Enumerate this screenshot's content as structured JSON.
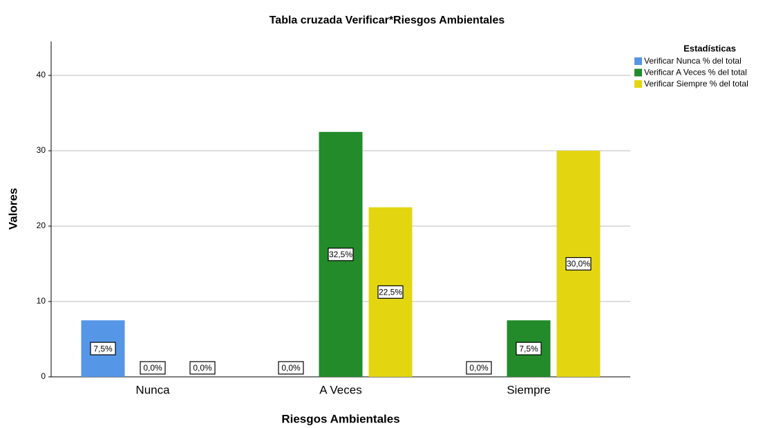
{
  "chart_data": {
    "type": "bar",
    "title": "Tabla cruzada Verificar*Riesgos Ambientales",
    "x_label": "Riesgos Ambientales",
    "y_label": "Valores",
    "categories": [
      "Nunca",
      "A Veces",
      "Siempre"
    ],
    "legend_title": "Estadísticas",
    "series": [
      {
        "name": "Verificar Nunca % del total",
        "color": "#5596e6",
        "values": [
          7.5,
          0,
          0
        ],
        "value_labels": [
          "7,5%",
          "0,0%",
          "0,0%"
        ]
      },
      {
        "name": "Verificar A Veces % del total",
        "color": "#238b2a",
        "values": [
          0,
          32.5,
          7.5
        ],
        "value_labels": [
          "0,0%",
          "32,5%",
          "7,5%"
        ]
      },
      {
        "name": "Verificar Siempre % del total",
        "color": "#e3d611",
        "values": [
          0,
          22.5,
          30
        ],
        "value_labels": [
          "0,0%",
          "22,5%",
          "30,0%"
        ]
      }
    ],
    "ylim": [
      0,
      44.5
    ],
    "yticks": [
      0,
      10,
      20,
      30,
      40
    ],
    "grid": true
  }
}
